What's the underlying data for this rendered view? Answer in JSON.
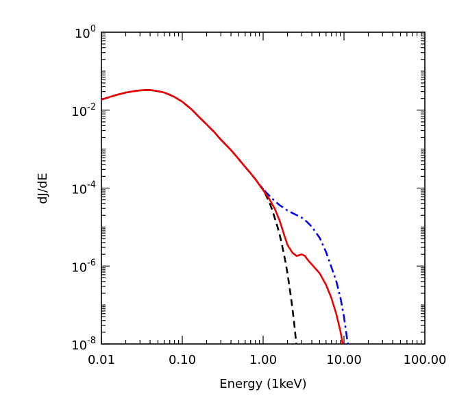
{
  "chart_data": {
    "type": "line",
    "title": "",
    "xlabel": "Energy (1keV)",
    "ylabel": "dJ/dE",
    "xscale": "log",
    "yscale": "log",
    "xlim": [
      0.01,
      100
    ],
    "ylim": [
      1e-08,
      1
    ],
    "grid": false,
    "legend": "none",
    "x_ticks": [
      {
        "value": 0.01,
        "label": "0.01"
      },
      {
        "value": 0.1,
        "label": "0.10"
      },
      {
        "value": 1,
        "label": "1.00"
      },
      {
        "value": 10,
        "label": "10.00"
      },
      {
        "value": 100,
        "label": "100.00"
      }
    ],
    "y_ticks": [
      {
        "value": 1,
        "base": "10",
        "exp": "0"
      },
      {
        "value": 0.01,
        "base": "10",
        "exp": "-2"
      },
      {
        "value": 0.0001,
        "base": "10",
        "exp": "-4"
      },
      {
        "value": 1e-06,
        "base": "10",
        "exp": "-6"
      },
      {
        "value": 1e-08,
        "base": "10",
        "exp": "-8"
      }
    ],
    "series": [
      {
        "color": "#0000ee",
        "style": "dash-dot",
        "points": [
          [
            0.01,
            0.0187
          ],
          [
            0.015,
            0.0242
          ],
          [
            0.02,
            0.0283
          ],
          [
            0.025,
            0.0306
          ],
          [
            0.03,
            0.032
          ],
          [
            0.035,
            0.0328
          ],
          [
            0.04,
            0.0328
          ],
          [
            0.05,
            0.0306
          ],
          [
            0.06,
            0.0283
          ],
          [
            0.07,
            0.0248
          ],
          [
            0.08,
            0.0218
          ],
          [
            0.1,
            0.0165
          ],
          [
            0.13,
            0.0105
          ],
          [
            0.16,
            0.0068
          ],
          [
            0.2,
            0.0043
          ],
          [
            0.25,
            0.0027
          ],
          [
            0.3,
            0.00175
          ],
          [
            0.4,
            0.00095
          ],
          [
            0.5,
            0.00055
          ],
          [
            0.6,
            0.00035
          ],
          [
            0.7,
            0.00024
          ],
          [
            0.8,
            0.00017
          ],
          [
            0.9,
            0.000122
          ],
          [
            1.0,
            9.35e-05
          ],
          [
            1.2,
            6.3e-05
          ],
          [
            1.4,
            4.6e-05
          ],
          [
            1.6,
            3.65e-05
          ],
          [
            1.8,
            3.1e-05
          ],
          [
            2.0,
            2.65e-05
          ],
          [
            2.5,
            2.1e-05
          ],
          [
            3.0,
            1.75e-05
          ],
          [
            3.5,
            1.35e-05
          ],
          [
            4.0,
            1.02e-05
          ],
          [
            5.0,
            5.3e-06
          ],
          [
            6.0,
            2.3e-06
          ],
          [
            7.0,
            9.3e-07
          ],
          [
            8.0,
            4.2e-07
          ],
          [
            9.0,
            1.6e-07
          ],
          [
            10.0,
            5e-08
          ],
          [
            11.0,
            1.2e-08
          ],
          [
            11.5,
            8e-09
          ]
        ]
      },
      {
        "color": "#000000",
        "style": "dashed",
        "points": [
          [
            0.01,
            0.0187
          ],
          [
            0.015,
            0.0242
          ],
          [
            0.02,
            0.0283
          ],
          [
            0.025,
            0.0306
          ],
          [
            0.03,
            0.032
          ],
          [
            0.035,
            0.0328
          ],
          [
            0.04,
            0.0328
          ],
          [
            0.05,
            0.0306
          ],
          [
            0.06,
            0.0283
          ],
          [
            0.07,
            0.0248
          ],
          [
            0.08,
            0.0218
          ],
          [
            0.1,
            0.0165
          ],
          [
            0.13,
            0.0105
          ],
          [
            0.16,
            0.0068
          ],
          [
            0.2,
            0.0043
          ],
          [
            0.25,
            0.0027
          ],
          [
            0.3,
            0.00175
          ],
          [
            0.4,
            0.00095
          ],
          [
            0.5,
            0.00055
          ],
          [
            0.6,
            0.00035
          ],
          [
            0.7,
            0.00024
          ],
          [
            0.8,
            0.00017
          ],
          [
            0.9,
            0.000122
          ],
          [
            1.0,
            9.35e-05
          ],
          [
            1.1,
            6.2e-05
          ],
          [
            1.2,
            4.2e-05
          ],
          [
            1.3,
            2.7e-05
          ],
          [
            1.4,
            1.65e-05
          ],
          [
            1.5,
            1.04e-05
          ],
          [
            1.6,
            6.4e-06
          ],
          [
            1.7,
            3.7e-06
          ],
          [
            1.8,
            2.1e-06
          ],
          [
            1.9,
            1.2e-06
          ],
          [
            2.0,
            6.5e-07
          ],
          [
            2.2,
            1.7e-07
          ],
          [
            2.4,
            4e-08
          ],
          [
            2.6,
            8e-09
          ]
        ]
      },
      {
        "color": "#ee0000",
        "style": "solid",
        "points": [
          [
            0.01,
            0.0187
          ],
          [
            0.015,
            0.0242
          ],
          [
            0.02,
            0.0283
          ],
          [
            0.025,
            0.0306
          ],
          [
            0.03,
            0.032
          ],
          [
            0.035,
            0.0328
          ],
          [
            0.04,
            0.0328
          ],
          [
            0.05,
            0.0306
          ],
          [
            0.06,
            0.0283
          ],
          [
            0.07,
            0.0248
          ],
          [
            0.08,
            0.0218
          ],
          [
            0.1,
            0.0165
          ],
          [
            0.13,
            0.0105
          ],
          [
            0.16,
            0.0068
          ],
          [
            0.2,
            0.0043
          ],
          [
            0.25,
            0.0027
          ],
          [
            0.3,
            0.00175
          ],
          [
            0.4,
            0.00095
          ],
          [
            0.5,
            0.00055
          ],
          [
            0.6,
            0.00035
          ],
          [
            0.7,
            0.00024
          ],
          [
            0.8,
            0.00017
          ],
          [
            0.9,
            0.00012
          ],
          [
            1.0,
            8.85e-05
          ],
          [
            1.2,
            5.2e-05
          ],
          [
            1.4,
            2.9e-05
          ],
          [
            1.6,
            1.45e-05
          ],
          [
            1.8,
            6.8e-06
          ],
          [
            2.0,
            3.5e-06
          ],
          [
            2.3,
            2.2e-06
          ],
          [
            2.6,
            1.8e-06
          ],
          [
            3.0,
            2e-06
          ],
          [
            3.3,
            1.8e-06
          ],
          [
            3.6,
            1.4e-06
          ],
          [
            4.0,
            1.1e-06
          ],
          [
            5.0,
            6.5e-07
          ],
          [
            6.0,
            3.3e-07
          ],
          [
            7.0,
            1.5e-07
          ],
          [
            8.0,
            6e-08
          ],
          [
            9.0,
            2.2e-08
          ],
          [
            9.5,
            1.2e-08
          ],
          [
            9.7,
            8e-09
          ]
        ]
      }
    ]
  }
}
